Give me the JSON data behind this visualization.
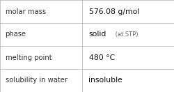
{
  "rows": [
    {
      "label": "molar mass",
      "value": "576.08 g/mol",
      "value_suffix": null
    },
    {
      "label": "phase",
      "value": "solid",
      "value_suffix": " (at STP)"
    },
    {
      "label": "melting point",
      "value": "480 °C",
      "value_suffix": null
    },
    {
      "label": "solubility in water",
      "value": "insoluble",
      "value_suffix": null
    }
  ],
  "col_split": 0.47,
  "bg_color": "#ffffff",
  "border_color": "#bbbbbb",
  "label_fontsize": 7.2,
  "value_fontsize": 7.8,
  "suffix_fontsize": 6.0,
  "label_color": "#333333",
  "value_color": "#111111",
  "suffix_color": "#666666",
  "bold_value": false
}
